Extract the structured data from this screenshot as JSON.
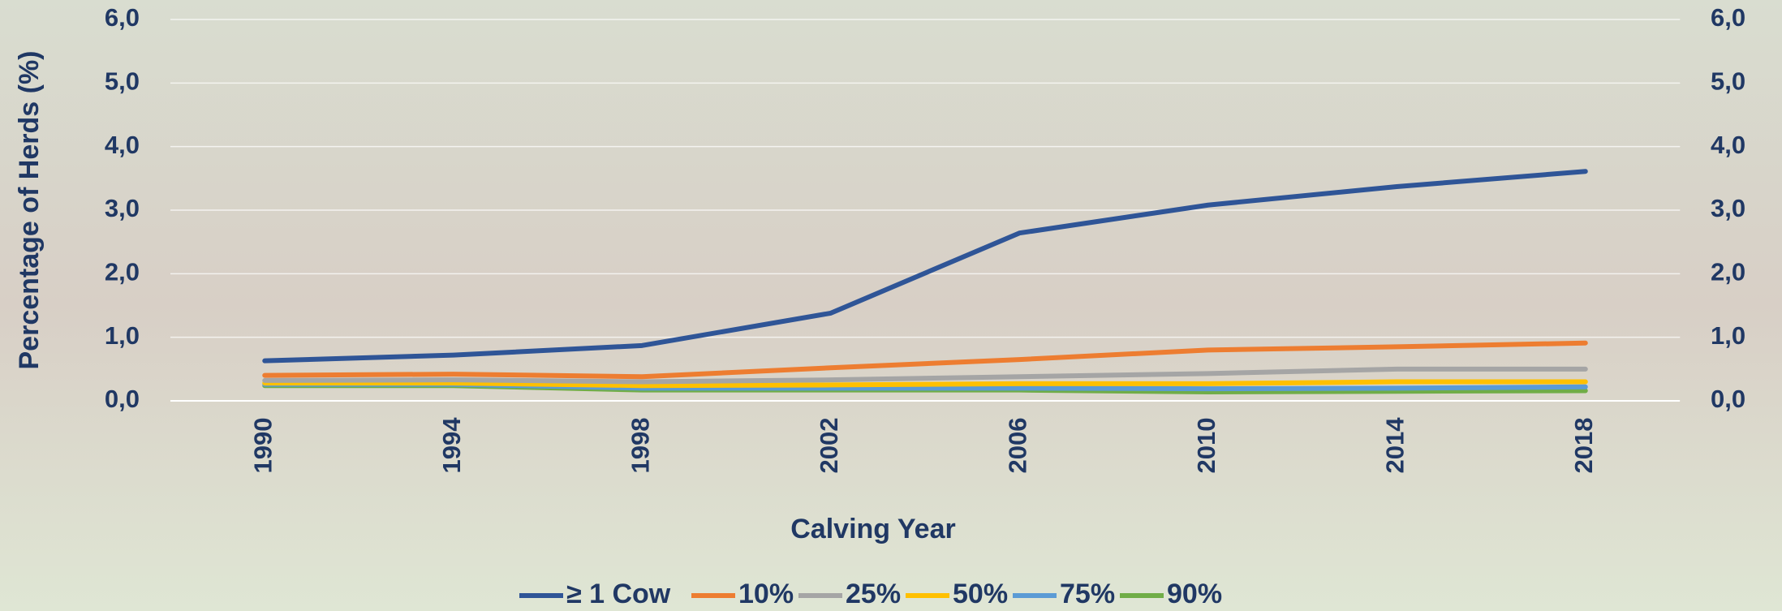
{
  "chart_data": {
    "type": "line",
    "x_label": "Calving Year",
    "y_label": "Percentage of Herds (%)",
    "categories": [
      "1990",
      "1994",
      "1998",
      "2002",
      "2006",
      "2010",
      "2014",
      "2018"
    ],
    "series": [
      {
        "name": "≥ 1 Cow",
        "color": "#2f5597",
        "values": [
          0.63,
          0.72,
          0.87,
          1.38,
          2.64,
          3.08,
          3.37,
          3.61
        ]
      },
      {
        "name": "10%",
        "color": "#ed7d31",
        "values": [
          0.4,
          0.42,
          0.38,
          0.52,
          0.65,
          0.8,
          0.85,
          0.91
        ]
      },
      {
        "name": "25%",
        "color": "#a5a5a5",
        "values": [
          0.32,
          0.33,
          0.3,
          0.33,
          0.38,
          0.43,
          0.5,
          0.5
        ]
      },
      {
        "name": "50%",
        "color": "#ffc000",
        "values": [
          0.28,
          0.28,
          0.24,
          0.25,
          0.27,
          0.27,
          0.3,
          0.3
        ]
      },
      {
        "name": "75%",
        "color": "#5b9bd5",
        "values": [
          0.26,
          0.26,
          0.2,
          0.2,
          0.2,
          0.19,
          0.2,
          0.22
        ]
      },
      {
        "name": "90%",
        "color": "#70ad47",
        "values": [
          0.24,
          0.24,
          0.17,
          0.17,
          0.17,
          0.14,
          0.15,
          0.16
        ]
      }
    ],
    "ylim": [
      0,
      6
    ],
    "yticks": [
      {
        "value": 0,
        "label": "0,0"
      },
      {
        "value": 1,
        "label": "1,0"
      },
      {
        "value": 2,
        "label": "2,0"
      },
      {
        "value": 3,
        "label": "3,0"
      },
      {
        "value": 4,
        "label": "4,0"
      },
      {
        "value": 5,
        "label": "5,0"
      },
      {
        "value": 6,
        "label": "6,0"
      }
    ],
    "y2lim": [
      0,
      6
    ],
    "y2ticks": [
      {
        "value": 0,
        "label": "0,0"
      },
      {
        "value": 1,
        "label": "1,0"
      },
      {
        "value": 2,
        "label": "2,0"
      },
      {
        "value": 3,
        "label": "3,0"
      },
      {
        "value": 4,
        "label": "4,0"
      },
      {
        "value": 5,
        "label": "5,0"
      },
      {
        "value": 6,
        "label": "6,0"
      }
    ],
    "grid": true,
    "legend": "bottom"
  }
}
